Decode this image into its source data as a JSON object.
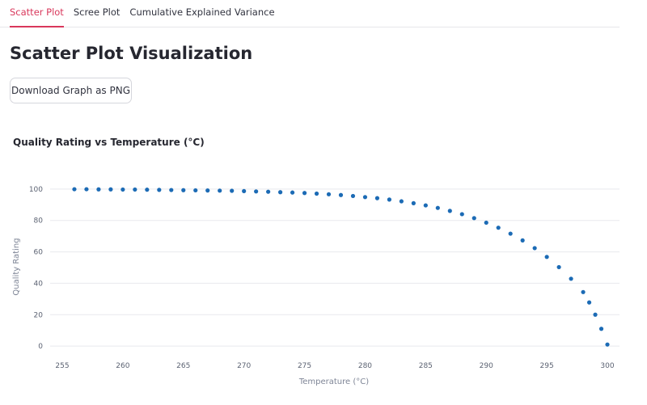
{
  "tabs": [
    {
      "label": "Scatter Plot",
      "active": true
    },
    {
      "label": "Scree Plot",
      "active": false
    },
    {
      "label": "Cumulative Explained Variance",
      "active": false
    }
  ],
  "page_title": "Scatter Plot Visualization",
  "download_button_label": "Download Graph as PNG",
  "colors": {
    "accent": "#d9375b",
    "point": "#1c6bb5",
    "grid": "#e8e9ed"
  },
  "chart_data": {
    "type": "scatter",
    "title": "Quality Rating vs Temperature (°C)",
    "xlabel": "Temperature (°C)",
    "ylabel": "Quality Rating",
    "xlim": [
      254,
      301
    ],
    "ylim": [
      -2,
      102
    ],
    "x_ticks": [
      255,
      260,
      265,
      270,
      275,
      280,
      285,
      290,
      295,
      300
    ],
    "y_ticks": [
      0,
      20,
      40,
      60,
      80,
      100
    ],
    "grid": true,
    "series": [
      {
        "points": [
          [
            256.0,
            99.9
          ],
          [
            257.0,
            99.9
          ],
          [
            258.0,
            99.8
          ],
          [
            259.0,
            99.8
          ],
          [
            260.0,
            99.7
          ],
          [
            261.0,
            99.7
          ],
          [
            262.0,
            99.6
          ],
          [
            263.0,
            99.5
          ],
          [
            264.0,
            99.4
          ],
          [
            265.0,
            99.3
          ],
          [
            266.0,
            99.2
          ],
          [
            267.0,
            99.1
          ],
          [
            268.0,
            99.0
          ],
          [
            269.0,
            98.9
          ],
          [
            270.0,
            98.7
          ],
          [
            271.0,
            98.5
          ],
          [
            272.0,
            98.3
          ],
          [
            273.0,
            98.0
          ],
          [
            274.0,
            97.8
          ],
          [
            275.0,
            97.5
          ],
          [
            276.0,
            97.1
          ],
          [
            277.0,
            96.7
          ],
          [
            278.0,
            96.2
          ],
          [
            279.0,
            95.6
          ],
          [
            280.0,
            94.9
          ],
          [
            281.0,
            94.2
          ],
          [
            282.0,
            93.3
          ],
          [
            283.0,
            92.2
          ],
          [
            284.0,
            91.0
          ],
          [
            285.0,
            89.6
          ],
          [
            286.0,
            88.0
          ],
          [
            287.0,
            86.1
          ],
          [
            288.0,
            84.0
          ],
          [
            289.0,
            81.5
          ],
          [
            290.0,
            78.6
          ],
          [
            291.0,
            75.4
          ],
          [
            292.0,
            71.6
          ],
          [
            293.0,
            67.3
          ],
          [
            294.0,
            62.4
          ],
          [
            295.0,
            56.8
          ],
          [
            296.0,
            50.3
          ],
          [
            297.0,
            42.9
          ],
          [
            298.0,
            34.4
          ],
          [
            298.5,
            27.8
          ],
          [
            299.0,
            20.0
          ],
          [
            299.5,
            11.0
          ],
          [
            300.0,
            1.0
          ]
        ]
      }
    ]
  }
}
